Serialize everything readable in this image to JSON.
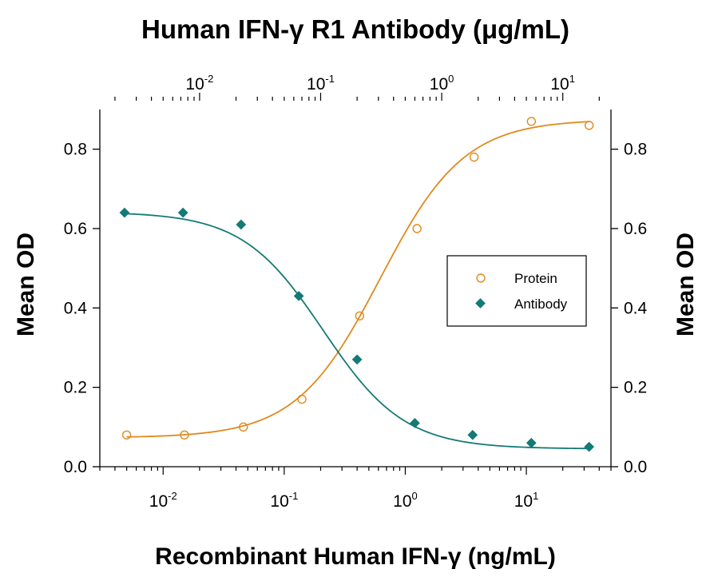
{
  "chart_data": {
    "type": "scatter",
    "title": "Human IFN-γ R1 Antibody (μg/mL)",
    "xlabel": "Recombinant Human IFN-γ (ng/mL)",
    "ylabel": "Mean OD",
    "ylabel_right": "Mean OD",
    "x_scale": "log",
    "xlim": [
      0.003,
      50
    ],
    "x2lim": [
      0.0015,
      25
    ],
    "ylim": [
      0,
      0.9
    ],
    "y_ticks": [
      "0.0",
      "0.2",
      "0.4",
      "0.6",
      "0.8"
    ],
    "y_tick_values": [
      0,
      0.2,
      0.4,
      0.6,
      0.8
    ],
    "x_tick_labels": [
      {
        "base": "10",
        "exp": "-2",
        "value": 0.01
      },
      {
        "base": "10",
        "exp": "-1",
        "value": 0.1
      },
      {
        "base": "10",
        "exp": "0",
        "value": 1
      },
      {
        "base": "10",
        "exp": "1",
        "value": 10
      }
    ],
    "x2_tick_labels": [
      {
        "base": "10",
        "exp": "-2",
        "value": 0.01
      },
      {
        "base": "10",
        "exp": "-1",
        "value": 0.1
      },
      {
        "base": "10",
        "exp": "0",
        "value": 1
      },
      {
        "base": "10",
        "exp": "1",
        "value": 10
      }
    ],
    "grid": false,
    "legend_position": "right-center",
    "series": [
      {
        "name": "Protein",
        "axis": "bottom",
        "marker": "open-circle",
        "color": "#e08a1e",
        "x": [
          0.005,
          0.015,
          0.046,
          0.14,
          0.42,
          1.25,
          3.7,
          11,
          33
        ],
        "y": [
          0.08,
          0.08,
          0.1,
          0.17,
          0.38,
          0.6,
          0.78,
          0.87,
          0.86
        ],
        "fit": {
          "bottom": 0.073,
          "top": 0.875,
          "ec50": 0.62,
          "hill": 1.25
        }
      },
      {
        "name": "Antibody",
        "axis": "top",
        "marker": "filled-diamond",
        "color": "#147a76",
        "x": [
          0.0024,
          0.0073,
          0.022,
          0.066,
          0.2,
          0.6,
          1.8,
          5.5,
          16.5
        ],
        "y": [
          0.64,
          0.64,
          0.61,
          0.43,
          0.27,
          0.11,
          0.08,
          0.06,
          0.05
        ],
        "fit": {
          "bottom": 0.045,
          "top": 0.642,
          "ec50": 0.105,
          "hill": 1.3
        }
      }
    ]
  }
}
